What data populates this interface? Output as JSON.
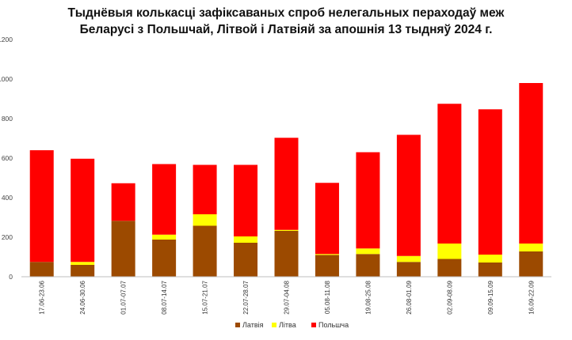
{
  "chart_data": {
    "type": "bar",
    "stacked": true,
    "title_lines": [
      "Тыднёвыя колькасці зафіксаваных  спроб нелегальных пераходаў меж",
      "Беларусі з Польшчай, Літвой і Латвіяй за апошнія 13 тыдняў 2024 г."
    ],
    "categories": [
      "17.06-23.06",
      "24.06-30.06",
      "01.07-07.07",
      "08.07-14.07",
      "15.07-21.07",
      "22.07-28.07",
      "29.07-04.08",
      "05.08-11.08",
      "19.08-25.08",
      "26.08-01.09",
      "02.09-08.09",
      "09.09-15.09",
      "16.09-22.09"
    ],
    "series": [
      {
        "name": "Латвія",
        "color": "#9C4A00",
        "values": [
          75,
          60,
          283,
          188,
          258,
          172,
          232,
          110,
          115,
          75,
          90,
          72,
          128
        ]
      },
      {
        "name": "Літва",
        "color": "#FFFF00",
        "values": [
          0,
          15,
          0,
          25,
          58,
          32,
          5,
          5,
          28,
          30,
          78,
          40,
          40
        ]
      },
      {
        "name": "Польшча",
        "color": "#FF0000",
        "values": [
          565,
          522,
          190,
          357,
          250,
          362,
          466,
          360,
          487,
          613,
          707,
          735,
          812
        ]
      }
    ],
    "yticks": [
      0,
      200,
      400,
      600,
      800,
      1000,
      1200
    ],
    "ytick_labels": [
      "0",
      "200",
      "400",
      "600",
      "800",
      "1000",
      "1200"
    ],
    "ylim": [
      0,
      1200
    ],
    "legend_position": "bottom",
    "grid": false
  }
}
